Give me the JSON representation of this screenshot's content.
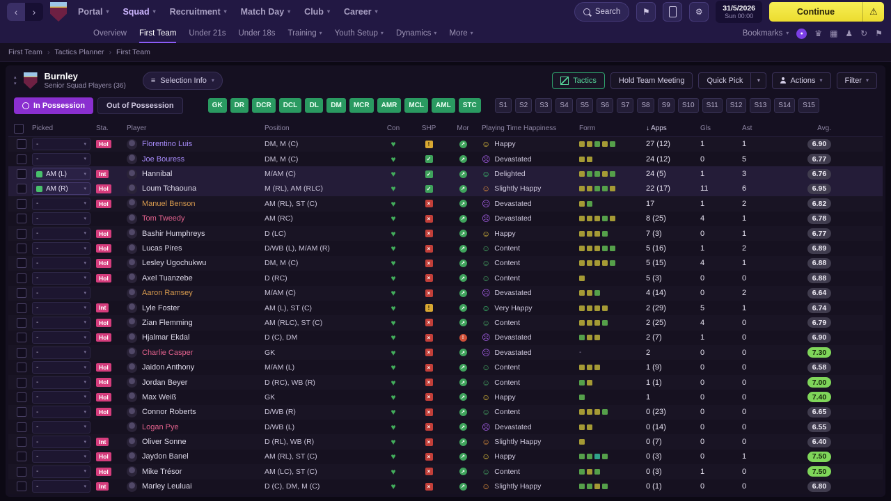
{
  "topbar": {
    "menus": [
      {
        "label": "Portal"
      },
      {
        "label": "Squad",
        "active": true
      },
      {
        "label": "Recruitment"
      },
      {
        "label": "Match Day"
      },
      {
        "label": "Club"
      },
      {
        "label": "Career"
      }
    ],
    "search_label": "Search",
    "date_line1": "31/5/2026",
    "date_line2": "Sun 00:00",
    "continue_label": "Continue"
  },
  "subnav": {
    "items": [
      {
        "label": "Overview"
      },
      {
        "label": "First Team",
        "active": true
      },
      {
        "label": "Under 21s"
      },
      {
        "label": "Under 18s"
      },
      {
        "label": "Training",
        "dropdown": true
      },
      {
        "label": "Youth Setup",
        "dropdown": true
      },
      {
        "label": "Dynamics",
        "dropdown": true
      },
      {
        "label": "More",
        "dropdown": true
      }
    ],
    "bookmarks_label": "Bookmarks"
  },
  "breadcrumb": [
    "First Team",
    "Tactics Planner",
    "First Team"
  ],
  "header": {
    "team": "Burnley",
    "subtitle": "Senior Squad Players (36)",
    "selection_info": "Selection Info",
    "tactics": "Tactics",
    "hold_meeting": "Hold Team Meeting",
    "quick_pick": "Quick Pick",
    "actions": "Actions",
    "filter": "Filter"
  },
  "possession": {
    "in_label": "In Possession",
    "out_label": "Out of Possession"
  },
  "position_buttons": [
    "GK",
    "DR",
    "DCR",
    "DCL",
    "DL",
    "DM",
    "MCR",
    "AMR",
    "MCL",
    "AML",
    "STC"
  ],
  "slot_buttons": [
    "S1",
    "S2",
    "S3",
    "S4",
    "S5",
    "S6",
    "S7",
    "S8",
    "S9",
    "S10",
    "S11",
    "S12",
    "S13",
    "S14",
    "S15"
  ],
  "table": {
    "headers": {
      "picked": "Picked",
      "sta": "Sta.",
      "player": "Player",
      "position": "Position",
      "con": "Con",
      "shp": "SHP",
      "mor": "Mor",
      "happiness": "Playing Time Happiness",
      "form": "Form",
      "apps": "Apps",
      "gls": "Gls",
      "ast": "Ast",
      "avg": "Avg."
    },
    "sort_column": "apps",
    "empty_form": "-",
    "rows": [
      {
        "picked": "-",
        "sta": "Hol",
        "name": "Florentino Luis",
        "nc": "purple",
        "pos": "DM, M (C)",
        "shp": "warn",
        "mor": "good",
        "hap": "Happy",
        "hk": "happy",
        "form": [
          "y",
          "y",
          "g",
          "y",
          "g"
        ],
        "apps": "27 (12)",
        "gls": "1",
        "ast": "1",
        "avg": "6.90"
      },
      {
        "picked": "-",
        "sta": "",
        "name": "Joe Bouress",
        "nc": "purple",
        "pos": "DM, M (C)",
        "shp": "check",
        "mor": "good",
        "hap": "Devastated",
        "hk": "devastated",
        "form": [
          "y",
          "y"
        ],
        "apps": "24 (12)",
        "gls": "0",
        "ast": "5",
        "avg": "6.77"
      },
      {
        "picked": "AM (L)",
        "sel": true,
        "sta": "Int",
        "name": "Hannibal",
        "nc": "normal",
        "pos": "M/AM (C)",
        "shp": "check",
        "mor": "good",
        "hap": "Delighted",
        "hk": "delighted",
        "form": [
          "y",
          "g",
          "g",
          "y",
          "g"
        ],
        "apps": "24 (5)",
        "gls": "1",
        "ast": "3",
        "avg": "6.76"
      },
      {
        "picked": "AM (R)",
        "sel": true,
        "sta": "Hol",
        "name": "Loum Tchaouna",
        "nc": "normal",
        "pos": "M (RL), AM (RLC)",
        "shp": "check",
        "mor": "good",
        "hap": "Slightly Happy",
        "hk": "slightly_happy",
        "form": [
          "y",
          "y",
          "g",
          "g",
          "y"
        ],
        "apps": "22 (17)",
        "gls": "11",
        "ast": "6",
        "avg": "6.95"
      },
      {
        "picked": "-",
        "sta": "Hol",
        "name": "Manuel Benson",
        "nc": "orange",
        "pos": "AM (RL), ST (C)",
        "shp": "cross",
        "mor": "good",
        "hap": "Devastated",
        "hk": "devastated",
        "form": [
          "y",
          "g"
        ],
        "apps": "17",
        "gls": "1",
        "ast": "2",
        "avg": "6.82"
      },
      {
        "picked": "-",
        "sta": "",
        "name": "Tom Tweedy",
        "nc": "pink",
        "pos": "AM (RC)",
        "shp": "cross",
        "mor": "good",
        "hap": "Devastated",
        "hk": "devastated",
        "form": [
          "y",
          "y",
          "y",
          "g",
          "y"
        ],
        "apps": "8 (25)",
        "gls": "4",
        "ast": "1",
        "avg": "6.78"
      },
      {
        "picked": "-",
        "sta": "Hol",
        "name": "Bashir Humphreys",
        "nc": "normal",
        "pos": "D (LC)",
        "shp": "cross",
        "mor": "good",
        "hap": "Happy",
        "hk": "happy",
        "form": [
          "y",
          "y",
          "y",
          "g"
        ],
        "apps": "7 (3)",
        "gls": "0",
        "ast": "1",
        "avg": "6.77"
      },
      {
        "picked": "-",
        "sta": "Hol",
        "name": "Lucas Pires",
        "nc": "normal",
        "pos": "D/WB (L), M/AM (R)",
        "shp": "cross",
        "mor": "good",
        "hap": "Content",
        "hk": "content",
        "form": [
          "y",
          "y",
          "y",
          "g",
          "g"
        ],
        "apps": "5 (16)",
        "gls": "1",
        "ast": "2",
        "avg": "6.89"
      },
      {
        "picked": "-",
        "sta": "Hol",
        "name": "Lesley Ugochukwu",
        "nc": "normal",
        "pos": "DM, M (C)",
        "shp": "cross",
        "mor": "good",
        "hap": "Content",
        "hk": "content",
        "form": [
          "y",
          "y",
          "y",
          "y",
          "g"
        ],
        "apps": "5 (15)",
        "gls": "4",
        "ast": "1",
        "avg": "6.88"
      },
      {
        "picked": "-",
        "sta": "Hol",
        "name": "Axel Tuanzebe",
        "nc": "normal",
        "pos": "D (RC)",
        "shp": "cross",
        "mor": "good",
        "hap": "Content",
        "hk": "content",
        "form": [
          "y"
        ],
        "apps": "5 (3)",
        "gls": "0",
        "ast": "0",
        "avg": "6.88"
      },
      {
        "picked": "-",
        "sta": "",
        "name": "Aaron Ramsey",
        "nc": "orange",
        "pos": "M/AM (C)",
        "shp": "cross",
        "mor": "good",
        "hap": "Devastated",
        "hk": "devastated",
        "form": [
          "y",
          "y",
          "g"
        ],
        "apps": "4 (14)",
        "gls": "0",
        "ast": "2",
        "avg": "6.64"
      },
      {
        "picked": "-",
        "sta": "Int",
        "name": "Lyle Foster",
        "nc": "normal",
        "pos": "AM (L), ST (C)",
        "shp": "warn",
        "mor": "good",
        "hap": "Very Happy",
        "hk": "very_happy",
        "form": [
          "y",
          "y",
          "y",
          "y"
        ],
        "apps": "2 (29)",
        "gls": "5",
        "ast": "1",
        "avg": "6.74"
      },
      {
        "picked": "-",
        "sta": "Hol",
        "name": "Zian Flemming",
        "nc": "normal",
        "pos": "AM (RLC), ST (C)",
        "shp": "cross",
        "mor": "good",
        "hap": "Content",
        "hk": "content",
        "form": [
          "y",
          "y",
          "y",
          "g"
        ],
        "apps": "2 (25)",
        "gls": "4",
        "ast": "0",
        "avg": "6.79"
      },
      {
        "picked": "-",
        "sta": "Hol",
        "name": "Hjalmar Ekdal",
        "nc": "normal",
        "pos": "D (C), DM",
        "shp": "cross",
        "mor": "bad",
        "hap": "Devastated",
        "hk": "devastated",
        "form": [
          "g",
          "y",
          "y"
        ],
        "apps": "2 (7)",
        "gls": "1",
        "ast": "0",
        "avg": "6.90"
      },
      {
        "picked": "-",
        "sta": "",
        "name": "Charlie Casper",
        "nc": "pink",
        "pos": "GK",
        "shp": "cross",
        "mor": "good",
        "hap": "Devastated",
        "hk": "devastated",
        "form": [],
        "apps": "2",
        "gls": "0",
        "ast": "0",
        "avg": "7.30"
      },
      {
        "picked": "-",
        "sta": "Hol",
        "name": "Jaidon Anthony",
        "nc": "normal",
        "pos": "M/AM (L)",
        "shp": "cross",
        "mor": "good",
        "hap": "Content",
        "hk": "content",
        "form": [
          "y",
          "y",
          "y"
        ],
        "apps": "1 (9)",
        "gls": "0",
        "ast": "0",
        "avg": "6.58"
      },
      {
        "picked": "-",
        "sta": "Hol",
        "name": "Jordan Beyer",
        "nc": "normal",
        "pos": "D (RC), WB (R)",
        "shp": "cross",
        "mor": "good",
        "hap": "Content",
        "hk": "content",
        "form": [
          "g",
          "y"
        ],
        "apps": "1 (1)",
        "gls": "0",
        "ast": "0",
        "avg": "7.00"
      },
      {
        "picked": "-",
        "sta": "Hol",
        "name": "Max Weiß",
        "nc": "normal",
        "pos": "GK",
        "shp": "cross",
        "mor": "good",
        "hap": "Happy",
        "hk": "happy",
        "form": [
          "g"
        ],
        "apps": "1",
        "gls": "0",
        "ast": "0",
        "avg": "7.40"
      },
      {
        "picked": "-",
        "sta": "Hol",
        "name": "Connor Roberts",
        "nc": "normal",
        "pos": "D/WB (R)",
        "shp": "cross",
        "mor": "good",
        "hap": "Content",
        "hk": "content",
        "form": [
          "y",
          "y",
          "y",
          "g"
        ],
        "apps": "0 (23)",
        "gls": "0",
        "ast": "0",
        "avg": "6.65"
      },
      {
        "picked": "-",
        "sta": "",
        "name": "Logan Pye",
        "nc": "pink",
        "pos": "D/WB (L)",
        "shp": "cross",
        "mor": "good",
        "hap": "Devastated",
        "hk": "devastated",
        "form": [
          "y",
          "y"
        ],
        "apps": "0 (14)",
        "gls": "0",
        "ast": "0",
        "avg": "6.55"
      },
      {
        "picked": "-",
        "sta": "Int",
        "name": "Oliver Sonne",
        "nc": "normal",
        "pos": "D (RL), WB (R)",
        "shp": "cross",
        "mor": "good",
        "hap": "Slightly Happy",
        "hk": "slightly_happy",
        "form": [
          "y"
        ],
        "apps": "0 (7)",
        "gls": "0",
        "ast": "0",
        "avg": "6.40"
      },
      {
        "picked": "-",
        "sta": "Hol",
        "name": "Jaydon Banel",
        "nc": "normal",
        "pos": "AM (RL), ST (C)",
        "shp": "cross",
        "mor": "good",
        "hap": "Happy",
        "hk": "happy",
        "form": [
          "g",
          "g",
          "t",
          "g"
        ],
        "apps": "0 (3)",
        "gls": "0",
        "ast": "1",
        "avg": "7.50"
      },
      {
        "picked": "-",
        "sta": "Hol",
        "name": "Mike Trésor",
        "nc": "normal",
        "pos": "AM (LC), ST (C)",
        "shp": "cross",
        "mor": "good",
        "hap": "Content",
        "hk": "content",
        "form": [
          "g",
          "y",
          "g"
        ],
        "apps": "0 (3)",
        "gls": "1",
        "ast": "0",
        "avg": "7.50"
      },
      {
        "picked": "-",
        "sta": "Int",
        "name": "Marley Leuluai",
        "nc": "normal",
        "pos": "D (C), DM, M (C)",
        "shp": "cross",
        "mor": "good",
        "hap": "Slightly Happy",
        "hk": "slightly_happy",
        "form": [
          "g",
          "g",
          "y",
          "g"
        ],
        "apps": "0 (1)",
        "gls": "0",
        "ast": "0",
        "avg": "6.80"
      }
    ]
  },
  "icons": {
    "chevron": "▾",
    "up": "▴",
    "back": "‹",
    "forward": "›",
    "heart": "♥",
    "check": "✓",
    "cross": "×",
    "warn": "!",
    "arrow": "↗",
    "sort": "↓",
    "smile": "☺",
    "frown": "☹",
    "gear": "⚙",
    "flag": "⚑",
    "lines": "≡",
    "crumb": "›",
    "trophy": "♛",
    "grid": "▦",
    "pawn": "♟",
    "refresh": "↻",
    "warning": "⚠",
    "dot": "●"
  },
  "colors": {
    "happiness": {
      "happy": "#e3c23c",
      "devastated": "#a05ce0",
      "delighted": "#3ecb72",
      "slightly_happy": "#e2913c",
      "content": "#46a964",
      "very_happy": "#3ecb72"
    },
    "form": {
      "y": "#a59a35",
      "g": "#55a04a",
      "t": "#2fa38a"
    }
  }
}
